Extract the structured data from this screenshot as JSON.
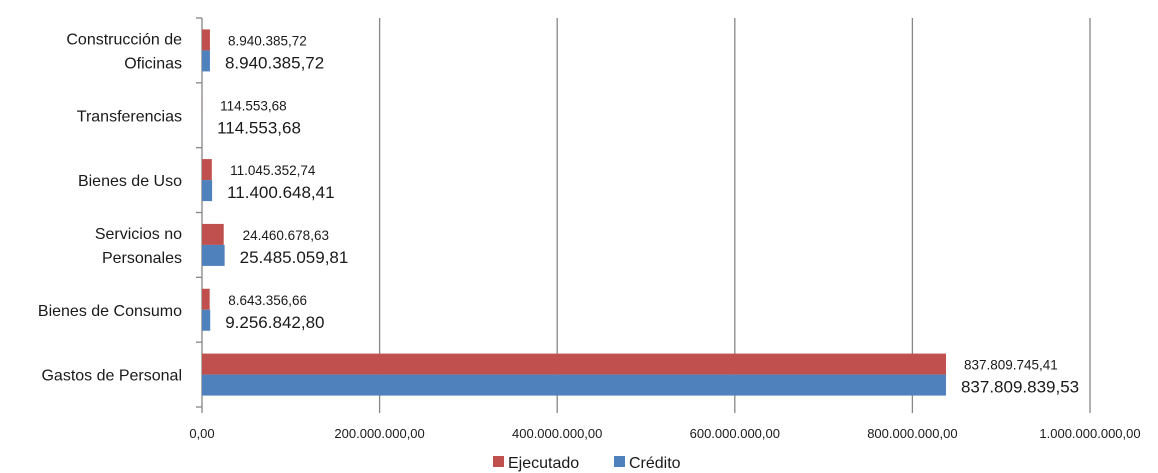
{
  "chart_data": {
    "type": "bar",
    "orientation": "horizontal",
    "categories": [
      "Gastos de Personal",
      "Bienes de Consumo",
      "Servicios no Personales",
      "Bienes de Uso",
      "Transferencias",
      "Construcción de Oficinas"
    ],
    "category_lines": [
      [
        "Gastos de Personal"
      ],
      [
        "Bienes de Consumo"
      ],
      [
        "Servicios no",
        "Personales"
      ],
      [
        "Bienes de Uso"
      ],
      [
        "Transferencias"
      ],
      [
        "Construcción de",
        "Oficinas"
      ]
    ],
    "series": [
      {
        "name": "Ejecutado",
        "color": "#c0504d",
        "values": [
          837809745.41,
          8643356.66,
          24460678.63,
          11045352.74,
          114553.68,
          8940385.72
        ],
        "labels": [
          "837.809.745,41",
          "8.643.356,66",
          "24.460.678,63",
          "11.045.352,74",
          "114.553,68",
          "8.940.385,72"
        ]
      },
      {
        "name": "Crédito",
        "color": "#4f81bd",
        "values": [
          837809839.53,
          9256842.8,
          25485059.81,
          11400648.41,
          114553.68,
          8940385.72
        ],
        "labels": [
          "837.809.839,53",
          "9.256.842,80",
          "25.485.059,81",
          "11.400.648,41",
          "114.553,68",
          "8.940.385,72"
        ]
      }
    ],
    "xlim": [
      0,
      1000000000
    ],
    "xticks": [
      0,
      200000000,
      400000000,
      600000000,
      800000000,
      1000000000
    ],
    "xtick_labels": [
      "0,00",
      "200.000.000,00",
      "400.000.000,00",
      "600.000.000,00",
      "800.000.000,00",
      "1.000.000.000,00"
    ],
    "grid": true,
    "grid_color": "#868686",
    "legend_position": "bottom",
    "title": "",
    "xlabel": "",
    "ylabel": ""
  }
}
